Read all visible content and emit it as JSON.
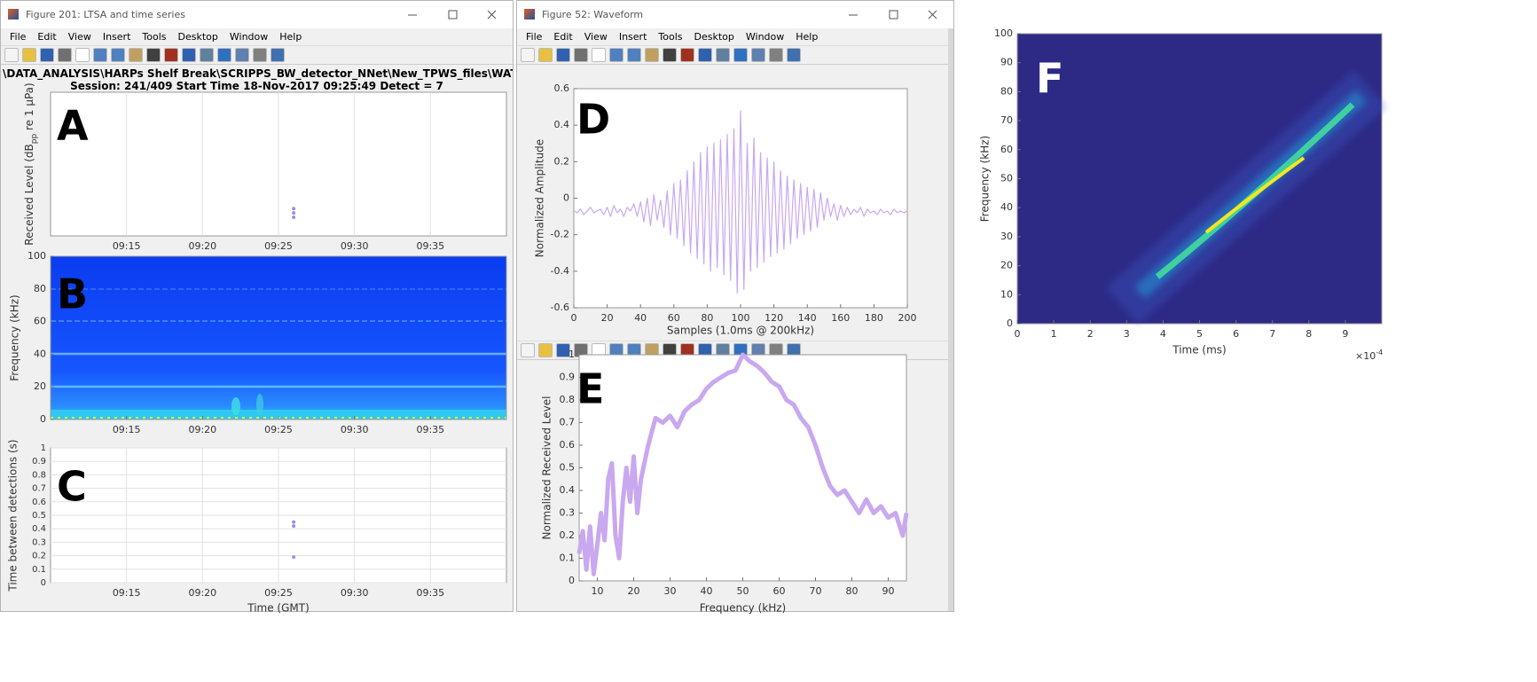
{
  "windows": [
    {
      "title": "Figure 201: LTSA and time series",
      "menu": [
        "File",
        "Edit",
        "View",
        "Insert",
        "Tools",
        "Desktop",
        "Window",
        "Help"
      ],
      "path": "\\DATA_ANALYSIS\\HARPs Shelf Break\\SCRIPPS_BW_detector_NNet\\New_TPWS_files\\WAT_BS_(",
      "session": "Session: 241/409 Start Time 18-Nov-2017 09:25:49 Detect = 7"
    },
    {
      "title": "Figure 52: Waveform",
      "menu": [
        "File",
        "Edit",
        "View",
        "Insert",
        "Tools",
        "Desktop",
        "Window",
        "Help"
      ]
    }
  ],
  "panels": [
    {
      "label": "A",
      "type": "scatter",
      "time_axis": true,
      "xlim": [
        "09:10",
        "09:40"
      ],
      "xticks": [
        "09:15",
        "09:20",
        "09:25",
        "09:30",
        "09:35"
      ],
      "ylim": [
        0,
        1
      ],
      "ylabel": [
        "Received Level (dB",
        "pp",
        " re 1 μPa)"
      ],
      "grid": true,
      "color": "#9b8fe0",
      "x": [
        "09:26",
        "09:26",
        "09:26"
      ],
      "values": [
        0.19,
        0.16,
        0.13
      ]
    },
    {
      "label": "B",
      "type": "spectrogram",
      "time_axis": true,
      "xlim": [
        "09:10",
        "09:40"
      ],
      "xticks": [
        "09:15",
        "09:20",
        "09:25",
        "09:30",
        "09:35"
      ],
      "ylim": [
        0,
        100
      ],
      "yticks": [
        0,
        20,
        40,
        60,
        80,
        100
      ],
      "ylabel": "Frequency (kHz)"
    },
    {
      "label": "C",
      "type": "scatter",
      "time_axis": true,
      "xlim": [
        "09:10",
        "09:40"
      ],
      "xticks": [
        "09:15",
        "09:20",
        "09:25",
        "09:30",
        "09:35"
      ],
      "ylim": [
        0,
        1
      ],
      "yticks": [
        0,
        0.1,
        0.2,
        0.3,
        0.4,
        0.5,
        0.6,
        0.7,
        0.8,
        0.9,
        1
      ],
      "ylabel": "Time between detections (s)",
      "xlabel": "Time (GMT)",
      "grid": true,
      "color": "#9b8fe0",
      "x": [
        "09:26",
        "09:26",
        "09:26"
      ],
      "values": [
        0.45,
        0.42,
        0.19
      ]
    },
    {
      "label": "D",
      "type": "line",
      "xlim": [
        0,
        200
      ],
      "xticks": [
        0,
        20,
        40,
        60,
        80,
        100,
        120,
        140,
        160,
        180,
        200
      ],
      "ylim": [
        -0.6,
        0.6
      ],
      "yticks": [
        -0.6,
        -0.4,
        -0.2,
        0,
        0.2,
        0.4,
        0.6
      ],
      "xlabel": "Samples (1.0ms @ 200kHz)",
      "ylabel": "Normalized Amplitude",
      "color": "#c9a8f0",
      "x": [
        0,
        2,
        4,
        6,
        8,
        10,
        12,
        14,
        16,
        18,
        20,
        22,
        24,
        26,
        28,
        30,
        32,
        34,
        36,
        38,
        40,
        42,
        44,
        46,
        48,
        50,
        52,
        54,
        56,
        58,
        60,
        62,
        64,
        66,
        68,
        70,
        72,
        74,
        76,
        78,
        80,
        82,
        84,
        86,
        88,
        90,
        92,
        94,
        96,
        98,
        100,
        102,
        104,
        106,
        108,
        110,
        112,
        114,
        116,
        118,
        120,
        122,
        124,
        126,
        128,
        130,
        132,
        134,
        136,
        138,
        140,
        142,
        144,
        146,
        148,
        150,
        152,
        154,
        156,
        158,
        160,
        162,
        164,
        166,
        168,
        170,
        172,
        174,
        176,
        178,
        180,
        182,
        184,
        186,
        188,
        190,
        192,
        194,
        196,
        198,
        200
      ],
      "values": [
        -0.07,
        -0.08,
        -0.06,
        -0.09,
        -0.07,
        -0.05,
        -0.08,
        -0.07,
        -0.06,
        -0.09,
        -0.05,
        -0.1,
        -0.04,
        -0.08,
        -0.06,
        -0.1,
        -0.05,
        -0.07,
        -0.03,
        -0.1,
        -0.02,
        -0.13,
        0.0,
        -0.15,
        0.02,
        -0.12,
        -0.01,
        -0.16,
        0.04,
        -0.2,
        0.08,
        -0.22,
        0.1,
        -0.26,
        0.15,
        -0.3,
        0.2,
        -0.33,
        0.25,
        -0.36,
        0.28,
        -0.4,
        0.3,
        -0.38,
        0.32,
        -0.42,
        0.35,
        -0.45,
        0.38,
        -0.52,
        0.48,
        -0.5,
        0.3,
        -0.4,
        0.33,
        -0.38,
        0.25,
        -0.35,
        0.22,
        -0.32,
        0.2,
        -0.3,
        0.15,
        -0.28,
        0.12,
        -0.25,
        0.1,
        -0.22,
        0.08,
        -0.2,
        0.06,
        -0.18,
        0.05,
        -0.16,
        0.03,
        -0.12,
        0.0,
        -0.1,
        -0.03,
        -0.12,
        -0.04,
        -0.1,
        -0.05,
        -0.09,
        -0.06,
        -0.08,
        -0.05,
        -0.1,
        -0.06,
        -0.08,
        -0.07,
        -0.09,
        -0.06,
        -0.08,
        -0.07,
        -0.09,
        -0.06,
        -0.08,
        -0.07,
        -0.08,
        -0.07
      ]
    },
    {
      "label": "E",
      "type": "line",
      "xlim": [
        5,
        95
      ],
      "xticks": [
        10,
        20,
        30,
        40,
        50,
        60,
        70,
        80,
        90
      ],
      "ylim": [
        0,
        1
      ],
      "yticks": [
        0,
        0.1,
        0.2,
        0.3,
        0.4,
        0.5,
        0.6,
        0.7,
        0.8,
        0.9,
        1
      ],
      "xlabel": "Frequency (kHz)",
      "ylabel": "Normalized Received Level",
      "color": "#c9a8f0",
      "x": [
        5,
        6,
        7,
        8,
        9,
        10,
        11,
        12,
        13,
        14,
        15,
        16,
        17,
        18,
        19,
        20,
        21,
        22,
        24,
        26,
        28,
        30,
        32,
        34,
        36,
        38,
        40,
        42,
        44,
        46,
        48,
        50,
        52,
        54,
        56,
        58,
        60,
        62,
        64,
        66,
        68,
        70,
        72,
        74,
        76,
        78,
        80,
        82,
        84,
        86,
        88,
        90,
        92,
        94,
        95
      ],
      "values": [
        0.12,
        0.22,
        0.05,
        0.24,
        0.03,
        0.16,
        0.3,
        0.18,
        0.45,
        0.52,
        0.2,
        0.1,
        0.35,
        0.5,
        0.35,
        0.55,
        0.3,
        0.45,
        0.6,
        0.72,
        0.7,
        0.73,
        0.68,
        0.75,
        0.78,
        0.8,
        0.85,
        0.88,
        0.9,
        0.92,
        0.93,
        1.0,
        0.97,
        0.95,
        0.92,
        0.88,
        0.86,
        0.8,
        0.78,
        0.72,
        0.68,
        0.6,
        0.5,
        0.42,
        0.38,
        0.4,
        0.35,
        0.3,
        0.36,
        0.3,
        0.33,
        0.28,
        0.3,
        0.2,
        0.3
      ]
    },
    {
      "label": "F",
      "type": "heatmap",
      "xlim": [
        0,
        10
      ],
      "xticks": [
        0,
        1,
        2,
        3,
        4,
        5,
        6,
        7,
        8,
        9
      ],
      "x_exponent": [
        "×10",
        "-4"
      ],
      "ylim": [
        0,
        100
      ],
      "yticks": [
        0,
        10,
        20,
        30,
        40,
        50,
        60,
        70,
        80,
        90,
        100
      ],
      "xlabel": "Time (ms)",
      "ylabel": "Frequency (kHz)"
    }
  ]
}
